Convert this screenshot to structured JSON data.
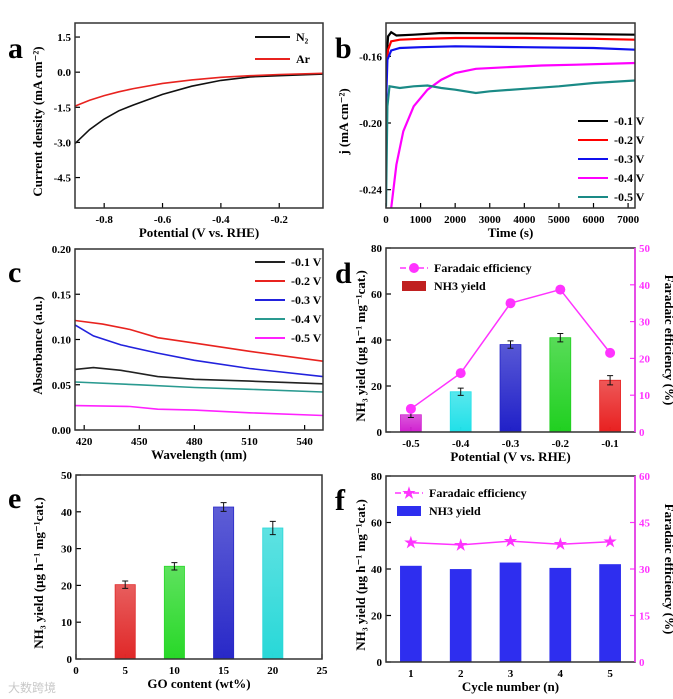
{
  "watermark": "大数跨境",
  "chart_data": [
    {
      "panel": "a",
      "type": "line",
      "xlabel": "Potential (V vs. RHE)",
      "ylabel": "Current density (mA cm⁻²)",
      "xlim": [
        -0.9,
        -0.05
      ],
      "ylim": [
        -5.8,
        2.1
      ],
      "xticks": [
        -0.8,
        -0.6,
        -0.4,
        -0.2
      ],
      "xtick_labels": [
        "-0.8",
        "-0.6",
        "-0.4",
        "-0.2"
      ],
      "yticks": [
        1.5,
        0.0,
        -1.5,
        -3.0,
        -4.5
      ],
      "ytick_labels": [
        "1.5",
        "0.0",
        "-1.5",
        "-3.0",
        "-4.5"
      ],
      "legend_position": "top-right",
      "series": [
        {
          "name": "N₂",
          "color": "#111111",
          "x": [
            -0.9,
            -0.85,
            -0.8,
            -0.75,
            -0.7,
            -0.6,
            -0.5,
            -0.4,
            -0.3,
            -0.2,
            -0.05
          ],
          "y": [
            -3.05,
            -2.45,
            -2.0,
            -1.65,
            -1.4,
            -0.95,
            -0.6,
            -0.35,
            -0.2,
            -0.15,
            -0.08
          ]
        },
        {
          "name": "Ar",
          "color": "#e8231f",
          "x": [
            -0.9,
            -0.85,
            -0.8,
            -0.75,
            -0.7,
            -0.6,
            -0.5,
            -0.4,
            -0.3,
            -0.2,
            -0.05
          ],
          "y": [
            -1.45,
            -1.2,
            -1.0,
            -0.84,
            -0.7,
            -0.48,
            -0.33,
            -0.22,
            -0.15,
            -0.1,
            -0.05
          ]
        }
      ]
    },
    {
      "panel": "b",
      "type": "line",
      "xlabel": "Time (s)",
      "ylabel": "j (mA cm⁻²)",
      "xlim": [
        0,
        7200
      ],
      "ylim": [
        -0.251,
        -0.14
      ],
      "xticks": [
        0,
        1000,
        2000,
        3000,
        4000,
        5000,
        6000,
        7000
      ],
      "xtick_labels": [
        "0",
        "1000",
        "2000",
        "3000",
        "4000",
        "5000",
        "6000",
        "7000"
      ],
      "yticks": [
        -0.16,
        -0.2,
        -0.24
      ],
      "ytick_labels": [
        "-0.16",
        "-0.20",
        "-0.24"
      ],
      "legend_position": "bottom-right",
      "series": [
        {
          "name": "-0.1 V",
          "color": "#000000",
          "x": [
            0,
            60,
            150,
            300,
            800,
            1600,
            3000,
            5000,
            7200
          ],
          "y": [
            -0.165,
            -0.148,
            -0.1455,
            -0.1475,
            -0.147,
            -0.146,
            -0.1462,
            -0.1465,
            -0.147
          ]
        },
        {
          "name": "-0.2 V",
          "color": "#ff0000",
          "x": [
            0,
            60,
            150,
            400,
            1000,
            2000,
            4000,
            6000,
            7200
          ],
          "y": [
            -0.17,
            -0.156,
            -0.151,
            -0.15,
            -0.1495,
            -0.149,
            -0.149,
            -0.1495,
            -0.15
          ]
        },
        {
          "name": "-0.3 V",
          "color": "#1010ee",
          "x": [
            0,
            40,
            150,
            400,
            1000,
            2000,
            4000,
            6000,
            7200
          ],
          "y": [
            -0.19,
            -0.162,
            -0.1565,
            -0.155,
            -0.1545,
            -0.154,
            -0.1545,
            -0.155,
            -0.156
          ]
        },
        {
          "name": "-0.4 V",
          "color": "#ff00ff",
          "x": [
            150,
            300,
            500,
            800,
            1200,
            1600,
            2000,
            2600,
            3500,
            4500,
            5500,
            7200
          ],
          "y": [
            -0.251,
            -0.225,
            -0.205,
            -0.19,
            -0.18,
            -0.174,
            -0.17,
            -0.1675,
            -0.1665,
            -0.1655,
            -0.165,
            -0.164
          ]
        },
        {
          "name": "-0.5 V",
          "color": "#1a8a86",
          "x": [
            0,
            40,
            100,
            400,
            800,
            1200,
            1600,
            2000,
            2600,
            3000,
            4000,
            5000,
            6000,
            7200
          ],
          "y": [
            -0.25,
            -0.19,
            -0.178,
            -0.179,
            -0.178,
            -0.1775,
            -0.179,
            -0.18,
            -0.182,
            -0.181,
            -0.1795,
            -0.178,
            -0.176,
            -0.1745
          ]
        }
      ]
    },
    {
      "panel": "c",
      "type": "line",
      "xlabel": "Wavelength (nm)",
      "ylabel": "Absorbance (a.u.)",
      "xlim": [
        415,
        550
      ],
      "ylim": [
        0,
        0.2
      ],
      "xticks": [
        420,
        450,
        480,
        510,
        540
      ],
      "xtick_labels": [
        "420",
        "450",
        "480",
        "510",
        "540"
      ],
      "yticks": [
        0,
        0.05,
        0.1,
        0.15,
        0.2
      ],
      "ytick_labels": [
        "0.00",
        "0.05",
        "0.10",
        "0.15",
        "0.20"
      ],
      "legend_position": "top-right",
      "series": [
        {
          "name": "-0.1 V",
          "color": "#222222",
          "x": [
            415,
            425,
            440,
            460,
            480,
            510,
            550
          ],
          "y": [
            0.067,
            0.069,
            0.066,
            0.059,
            0.056,
            0.054,
            0.051
          ]
        },
        {
          "name": "-0.2 V",
          "color": "#e8231f",
          "x": [
            415,
            430,
            445,
            460,
            480,
            510,
            550
          ],
          "y": [
            0.121,
            0.117,
            0.111,
            0.102,
            0.096,
            0.087,
            0.076
          ]
        },
        {
          "name": "-0.3 V",
          "color": "#2222dd",
          "x": [
            415,
            425,
            440,
            460,
            480,
            510,
            550
          ],
          "y": [
            0.116,
            0.104,
            0.094,
            0.085,
            0.077,
            0.068,
            0.059
          ]
        },
        {
          "name": "-0.4 V",
          "color": "#2a9a90",
          "x": [
            415,
            450,
            480,
            510,
            550
          ],
          "y": [
            0.053,
            0.05,
            0.047,
            0.045,
            0.042
          ]
        },
        {
          "name": "-0.5 V",
          "color": "#ff22ff",
          "x": [
            415,
            445,
            460,
            480,
            510,
            550
          ],
          "y": [
            0.027,
            0.026,
            0.023,
            0.022,
            0.019,
            0.016
          ]
        }
      ]
    },
    {
      "panel": "d",
      "type": "bar",
      "xlabel": "Potential (V vs. RHE)",
      "ylabel": "NH₃ yield (μg h⁻¹ mg⁻¹cat.)",
      "y2label": "Faradaic efficiency (%)",
      "categories": [
        "-0.5",
        "-0.4",
        "-0.3",
        "-0.2",
        "-0.1"
      ],
      "ylim": [
        0,
        80
      ],
      "yticks": [
        0,
        20,
        40,
        60,
        80
      ],
      "ytick_labels": [
        "0",
        "20",
        "40",
        "60",
        "80"
      ],
      "y2lim": [
        0,
        50
      ],
      "y2ticks": [
        0,
        10,
        20,
        30,
        40,
        50
      ],
      "y2tick_labels": [
        "0",
        "10",
        "20",
        "30",
        "40",
        "50"
      ],
      "legend_position": "top-left",
      "bars": {
        "name": "NH3 yield",
        "values": [
          7.5,
          17.5,
          38,
          41,
          22.5
        ],
        "errors": [
          1.2,
          1.6,
          1.6,
          1.8,
          2.0
        ],
        "colors": [
          "#d020d0",
          "#20e0e8",
          "#2020c8",
          "#20d020",
          "#e82020"
        ]
      },
      "line": {
        "name": "Faradaic efficiency",
        "color": "#ff33ff",
        "values": [
          6.3,
          16,
          35,
          38.7,
          21.5
        ],
        "marker": "circle"
      }
    },
    {
      "panel": "e",
      "type": "bar",
      "xlabel": "GO content (wt%)",
      "ylabel": "NH₃ yield (μg h⁻¹ mg⁻¹cat.)",
      "xlim": [
        0,
        25
      ],
      "xticks": [
        0,
        5,
        10,
        15,
        20,
        25
      ],
      "xtick_labels": [
        "0",
        "5",
        "10",
        "15",
        "20",
        "25"
      ],
      "ylim": [
        0,
        50
      ],
      "yticks": [
        0,
        10,
        20,
        30,
        40,
        50
      ],
      "ytick_labels": [
        "0",
        "10",
        "20",
        "30",
        "40",
        "50"
      ],
      "bars": {
        "x": [
          5,
          10,
          15,
          20
        ],
        "values": [
          20.2,
          25.2,
          41.3,
          35.6
        ],
        "errors": [
          1.0,
          1.0,
          1.2,
          1.8
        ],
        "colors": [
          "#e02828",
          "#28d828",
          "#2828c8",
          "#28d8d8"
        ]
      }
    },
    {
      "panel": "f",
      "type": "bar",
      "xlabel": "Cycle number (n)",
      "ylabel": "NH₃ yield (μg h⁻¹ mg⁻¹cat.)",
      "y2label": "Faradaic efficiency (%)",
      "categories": [
        "1",
        "2",
        "3",
        "4",
        "5"
      ],
      "ylim": [
        0,
        80
      ],
      "yticks": [
        0,
        20,
        40,
        60,
        80
      ],
      "ytick_labels": [
        "0",
        "20",
        "40",
        "60",
        "80"
      ],
      "y2lim": [
        0,
        60
      ],
      "y2ticks": [
        0,
        15,
        30,
        45,
        60
      ],
      "y2tick_labels": [
        "0",
        "15",
        "30",
        "45",
        "60"
      ],
      "legend_position": "top-left",
      "bars": {
        "name": "NH3 yield",
        "values": [
          41.2,
          39.8,
          42.6,
          40.3,
          41.9
        ],
        "errors": [
          0,
          0,
          0,
          0,
          0
        ],
        "colors": [
          "#2e2eef",
          "#2e2eef",
          "#2e2eef",
          "#2e2eef",
          "#2e2eef"
        ]
      },
      "line": {
        "name": "Faradaic efficiency",
        "color": "#ff33ff",
        "values": [
          38.5,
          37.8,
          39.0,
          38.0,
          38.8
        ],
        "marker": "star"
      }
    }
  ]
}
